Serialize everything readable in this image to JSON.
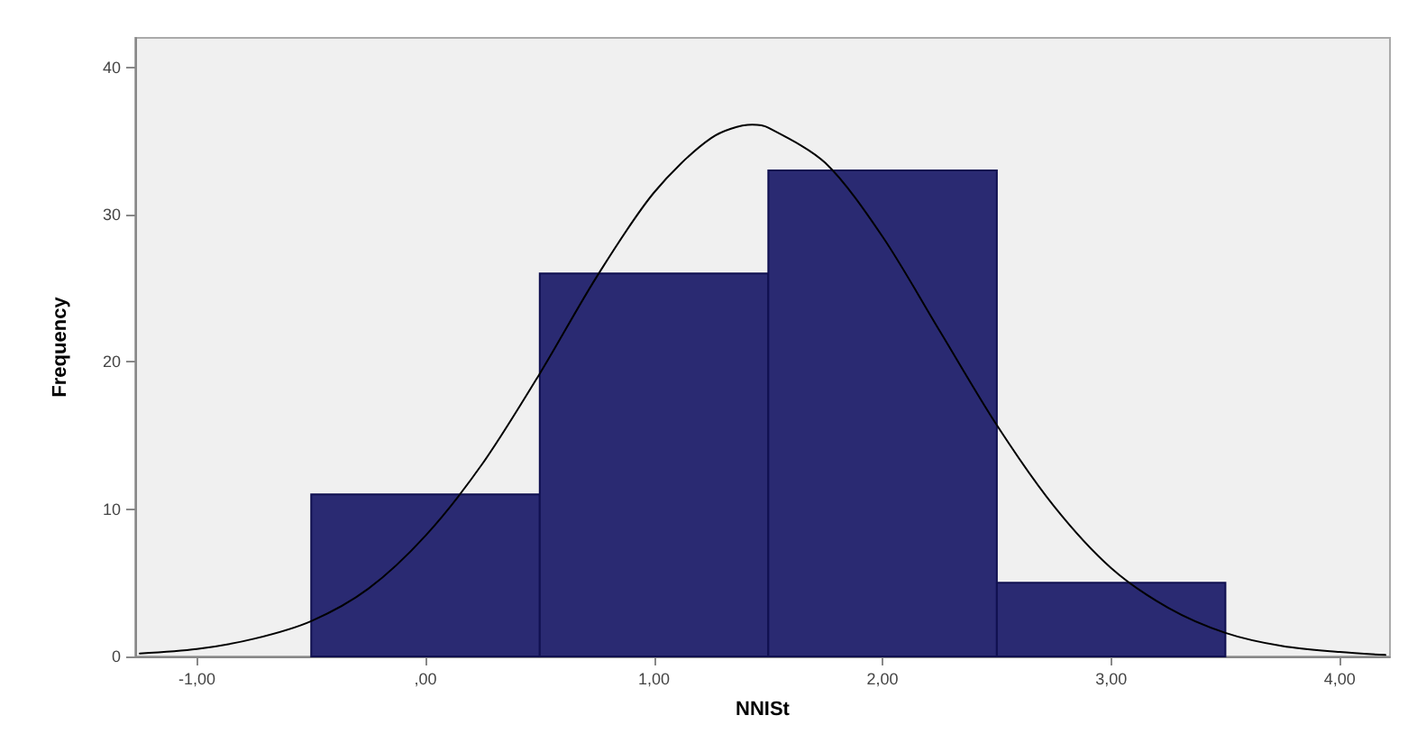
{
  "chart_data": {
    "type": "histogram",
    "xlabel": "NNISt",
    "ylabel": "Frequency",
    "bins": [
      -0.5,
      0.5,
      1.5,
      2.5,
      3.5
    ],
    "series": [
      {
        "color": "#2a2a72",
        "values": [
          11,
          26,
          33,
          5
        ]
      },
      {
        "type": "line",
        "color": "#000000",
        "x": [
          -1.25,
          -1.0,
          -0.75,
          -0.5,
          -0.25,
          0,
          0.25,
          0.5,
          0.75,
          1.0,
          1.25,
          1.43,
          1.5,
          1.75,
          2.0,
          2.25,
          2.5,
          2.75,
          3.0,
          3.25,
          3.5,
          3.75,
          4.0,
          4.2
        ],
        "values": [
          0.2,
          0.5,
          1.2,
          2.4,
          4.6,
          8.2,
          13.1,
          19.2,
          25.8,
          31.5,
          35.2,
          36.1,
          35.9,
          33.5,
          28.5,
          22.1,
          15.7,
          10.2,
          6.0,
          3.3,
          1.6,
          0.7,
          0.3,
          0.1
        ]
      }
    ],
    "xlim": [
      -1.27,
      4.22
    ],
    "ylim": [
      0,
      42
    ],
    "xticks": [
      {
        "value": -1,
        "label": "-1,00"
      },
      {
        "value": 0,
        "label": ",00"
      },
      {
        "value": 1,
        "label": "1,00"
      },
      {
        "value": 2,
        "label": "2,00"
      },
      {
        "value": 3,
        "label": "3,00"
      },
      {
        "value": 4,
        "label": "4,00"
      }
    ],
    "yticks": [
      0,
      10,
      20,
      30,
      40
    ],
    "grid": false,
    "marker": "none",
    "line_style": "solid"
  }
}
